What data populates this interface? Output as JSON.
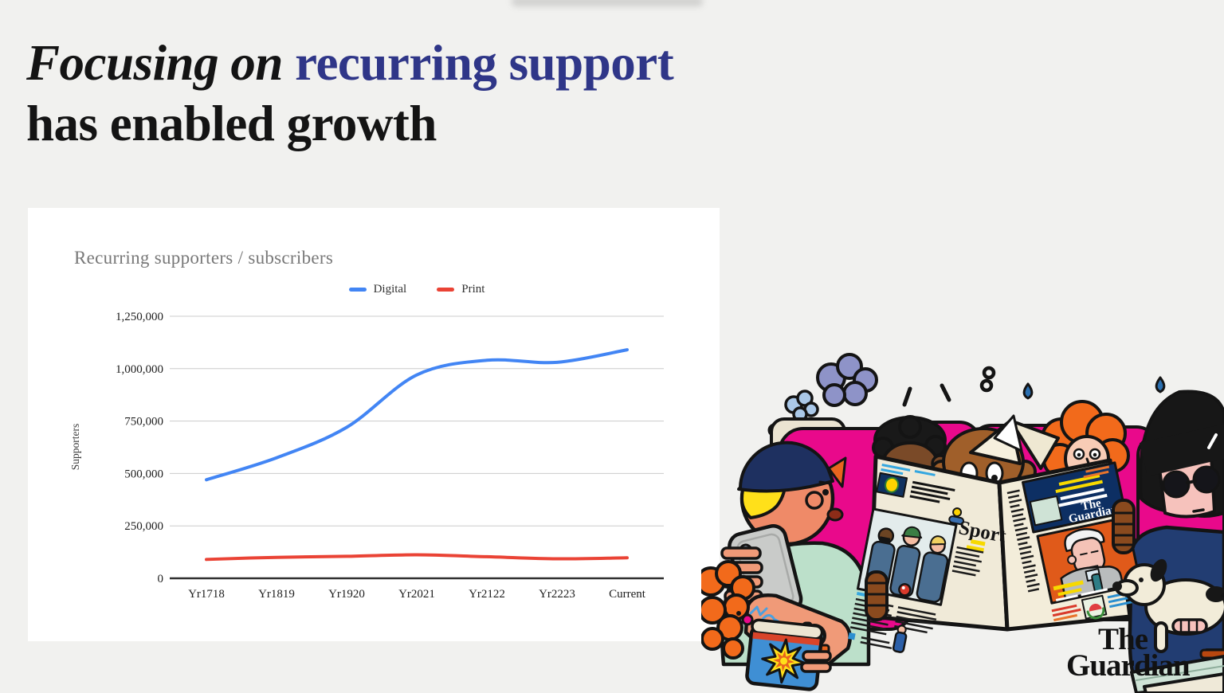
{
  "slide": {
    "background_color": "#f1f1ef",
    "title": {
      "italic_part": "Focusing on",
      "highlight_part": "recurring support",
      "line2": "has enabled growth",
      "highlight_color": "#2f3688",
      "text_color": "#141414"
    }
  },
  "chart_card": {
    "title": "Recurring supporters / subscribers"
  },
  "chart_data": {
    "type": "line",
    "title": "Recurring supporters / subscribers",
    "categories": [
      "Yr1718",
      "Yr1819",
      "Yr1920",
      "Yr2021",
      "Yr2122",
      "Yr2223",
      "Current"
    ],
    "series": [
      {
        "name": "Digital",
        "color": "#4285f4",
        "values": [
          470000,
          575000,
          720000,
          970000,
          1040000,
          1030000,
          1090000
        ]
      },
      {
        "name": "Print",
        "color": "#ea4335",
        "values": [
          90000,
          100000,
          105000,
          112000,
          103000,
          93000,
          98000
        ]
      }
    ],
    "xlabel": "",
    "ylabel": "Supporters",
    "ylim": [
      0,
      1250000
    ],
    "yticks": [
      0,
      250000,
      500000,
      750000,
      1000000,
      1250000
    ],
    "ytick_labels": [
      "0",
      "250,000",
      "500,000",
      "750,000",
      "1,000,000",
      "1,250,000"
    ],
    "grid": true,
    "legend_position": "top",
    "smooth": true
  },
  "illustration": {
    "newspaper_section_label": "Sport",
    "masthead_line1": "The",
    "masthead_line2": "Guardian"
  },
  "branding": {
    "logo_line1": "The",
    "logo_line2": "Guardian",
    "color": "#121212"
  }
}
